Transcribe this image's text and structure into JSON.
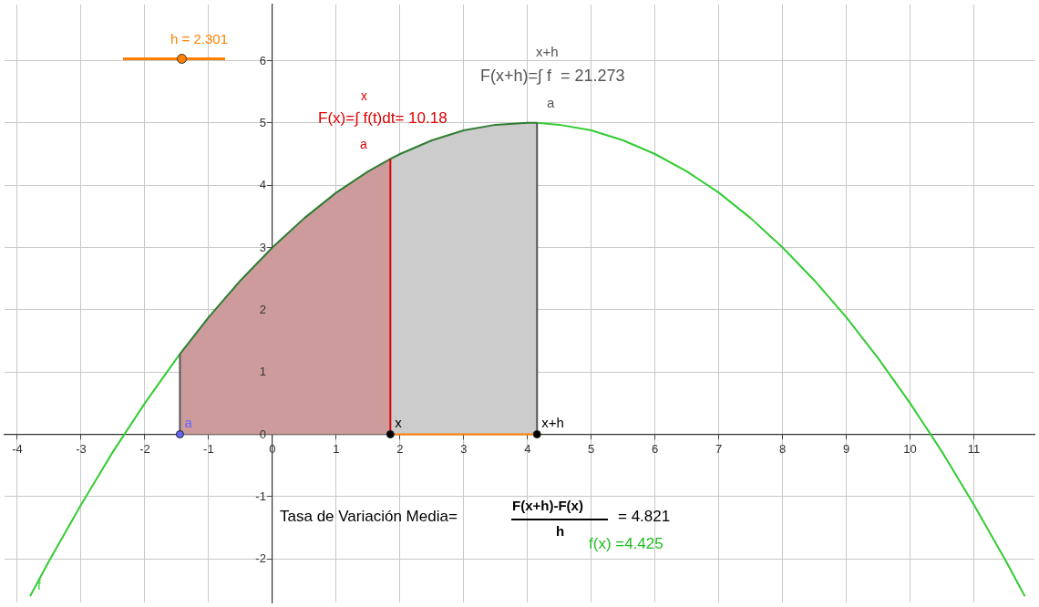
{
  "chart_data": {
    "type": "line",
    "xlim": [
      -4.2,
      11.95
    ],
    "ylim": [
      -2.7,
      6.9
    ],
    "xticks": [
      -4,
      -3,
      -2,
      -1,
      0,
      1,
      2,
      3,
      4,
      5,
      6,
      7,
      8,
      9,
      10,
      11
    ],
    "yticks": [
      -2,
      -1,
      0,
      1,
      2,
      3,
      4,
      5,
      6
    ],
    "grid": true,
    "series": [
      {
        "type": "area",
        "color": "#cd9b9b",
        "x": [
          -1.45,
          -1,
          -0.5,
          0,
          0.5,
          1,
          1.5,
          1.85
        ],
        "values": [
          1.29,
          1.88,
          2.47,
          3,
          3.47,
          3.88,
          4.22,
          4.42
        ]
      },
      {
        "type": "area",
        "color": "#cccccc",
        "x": [
          1.85,
          2,
          2.5,
          3,
          3.5,
          4,
          4.15
        ],
        "values": [
          4.42,
          4.5,
          4.72,
          4.88,
          4.97,
          5,
          5
        ]
      },
      {
        "type": "line",
        "name": "f",
        "color": "#33cc33",
        "x": [
          -3.8,
          -3.5,
          -3,
          -2.5,
          -2,
          -1.5,
          -1.45,
          0,
          4.15,
          4.5,
          5,
          5.5,
          6,
          6.5,
          7,
          7.5,
          8,
          8.5,
          9,
          9.5,
          10,
          10.5,
          11,
          11.5,
          11.8
        ],
        "values": [
          -2.6,
          -2.03,
          -1.13,
          -0.28,
          0.5,
          1.22,
          1.29,
          null,
          5,
          4.97,
          4.88,
          4.72,
          4.5,
          4.22,
          3.88,
          3.47,
          3,
          2.47,
          1.88,
          1.22,
          0.5,
          -0.28,
          -1.13,
          -2.03,
          -2.6
        ]
      },
      {
        "type": "line",
        "color": "#2e7d32",
        "x": [
          -1.45,
          -1,
          -0.5,
          0,
          0.5,
          1,
          1.5,
          1.85,
          2,
          2.5,
          3,
          3.5,
          4,
          4.15
        ],
        "values": [
          1.29,
          1.88,
          2.47,
          3,
          3.47,
          3.88,
          4.22,
          4.42,
          4.5,
          4.72,
          4.88,
          4.97,
          5,
          5
        ]
      },
      {
        "type": "line",
        "color": "#555555",
        "x": [
          -1.45,
          -1.45
        ],
        "values": [
          0,
          1.29
        ]
      },
      {
        "type": "line",
        "color": "#555555",
        "x": [
          4.15,
          4.15
        ],
        "values": [
          0,
          5
        ]
      },
      {
        "type": "line",
        "color": "#dd0000",
        "x": [
          1.85,
          1.85
        ],
        "values": [
          0,
          4.42
        ]
      },
      {
        "type": "line",
        "color": "#ff8000",
        "x": [
          1.85,
          4.15
        ],
        "values": [
          0,
          0
        ]
      },
      {
        "type": "scatter",
        "marker": "circle",
        "color": "#6666ff",
        "x": [
          -1.45
        ],
        "values": [
          0
        ]
      },
      {
        "type": "scatter",
        "marker": "circle",
        "color": "#000000",
        "x": [
          1.85,
          4.15
        ],
        "values": [
          0,
          0
        ]
      }
    ],
    "annotations": [
      "h = 2.301",
      "F(x+h)=∫ f  = 21.273",
      "x+h",
      "a",
      "F(x)=∫ f(t)dt= 10.18",
      "x",
      "a",
      "Tasa de Variación Media=",
      "F(x+h)-F(x)",
      "h",
      "= 4.821",
      "f(x) =4.425",
      {
        "text": "a",
        "x": -1.45,
        "y": 0
      },
      {
        "text": "x",
        "x": 1.85,
        "y": 0
      },
      {
        "text": "x+h",
        "x": 4.15,
        "y": 0
      }
    ]
  }
}
